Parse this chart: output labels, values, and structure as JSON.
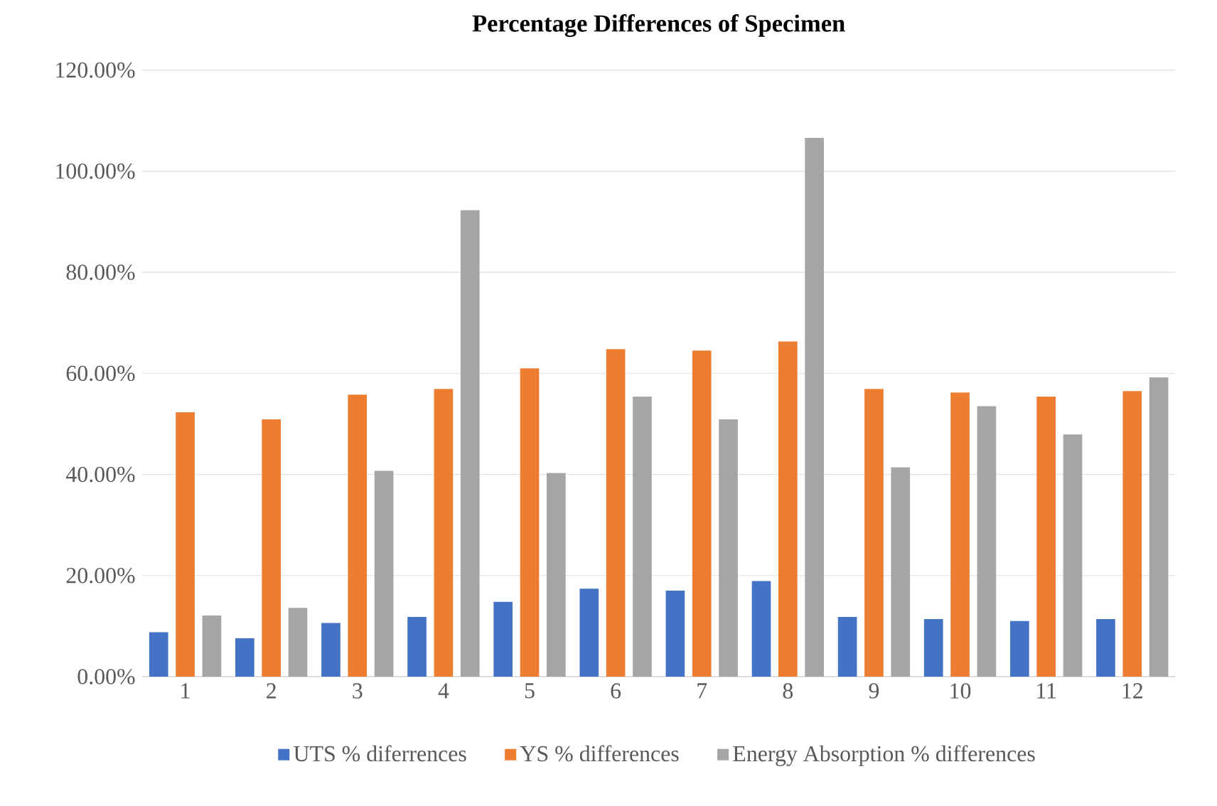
{
  "chart_data": {
    "type": "bar",
    "title": "Percentage Differences of Specimen",
    "categories": [
      "1",
      "2",
      "3",
      "4",
      "5",
      "6",
      "7",
      "8",
      "9",
      "10",
      "11",
      "12"
    ],
    "series": [
      {
        "name": "UTS % diferrences",
        "color": "#4472c4",
        "values": [
          8.8,
          7.6,
          10.6,
          11.8,
          14.8,
          17.4,
          17.0,
          18.9,
          11.8,
          11.4,
          11.0,
          11.4
        ]
      },
      {
        "name": "YS % differences",
        "color": "#ed7d31",
        "values": [
          52.3,
          50.9,
          55.8,
          56.9,
          61.0,
          64.8,
          64.5,
          66.3,
          56.9,
          56.2,
          55.4,
          56.5
        ]
      },
      {
        "name": "Energy Absorption % differences",
        "color": "#a5a5a5",
        "values": [
          12.1,
          13.6,
          40.7,
          92.3,
          40.3,
          55.4,
          50.9,
          106.6,
          41.4,
          53.5,
          47.9,
          59.2
        ]
      }
    ],
    "ylim": [
      0,
      120
    ],
    "yticks": [
      {
        "value": 0,
        "label": "0.00%"
      },
      {
        "value": 20,
        "label": "20.00%"
      },
      {
        "value": 40,
        "label": "40.00%"
      },
      {
        "value": 60,
        "label": "60.00%"
      },
      {
        "value": 80,
        "label": "80.00%"
      },
      {
        "value": 100,
        "label": "100.00%"
      },
      {
        "value": 120,
        "label": "120.00%"
      }
    ],
    "grid": "y",
    "legend": "bottom"
  }
}
